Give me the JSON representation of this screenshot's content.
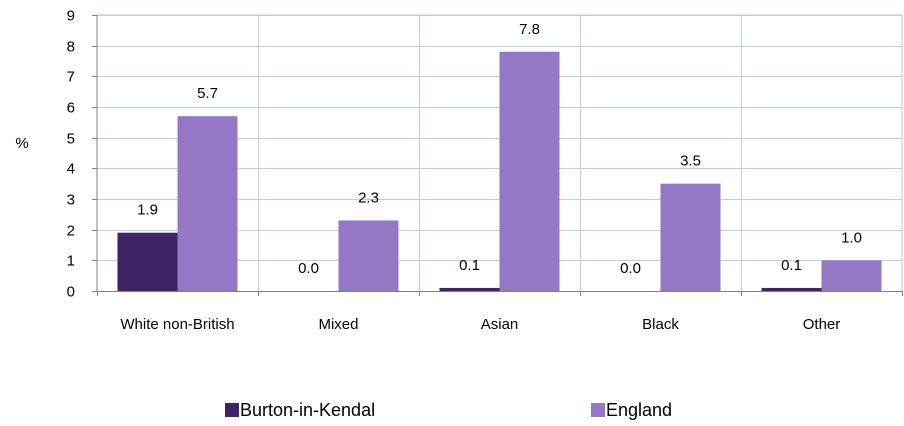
{
  "chart_data": {
    "type": "bar",
    "ylabel": "%",
    "ylim": [
      0,
      9
    ],
    "yticks": [
      0,
      1,
      2,
      3,
      4,
      5,
      6,
      7,
      8,
      9
    ],
    "grid": true,
    "legend_position": "bottom",
    "categories": [
      "White non-British",
      "Mixed",
      "Asian",
      "Black",
      "Other"
    ],
    "series": [
      {
        "name": "Burton-in-Kendal",
        "color": "#3f2463",
        "values": [
          1.9,
          0.0,
          0.1,
          0.0,
          0.1
        ],
        "labels": [
          "1.9",
          "0.0",
          "0.1",
          "0.0",
          "0.1"
        ]
      },
      {
        "name": "England",
        "color": "#9478c6",
        "values": [
          5.7,
          2.3,
          7.8,
          3.5,
          1.0
        ],
        "labels": [
          "5.7",
          "2.3",
          "7.8",
          "3.5",
          "1.0"
        ]
      }
    ]
  }
}
